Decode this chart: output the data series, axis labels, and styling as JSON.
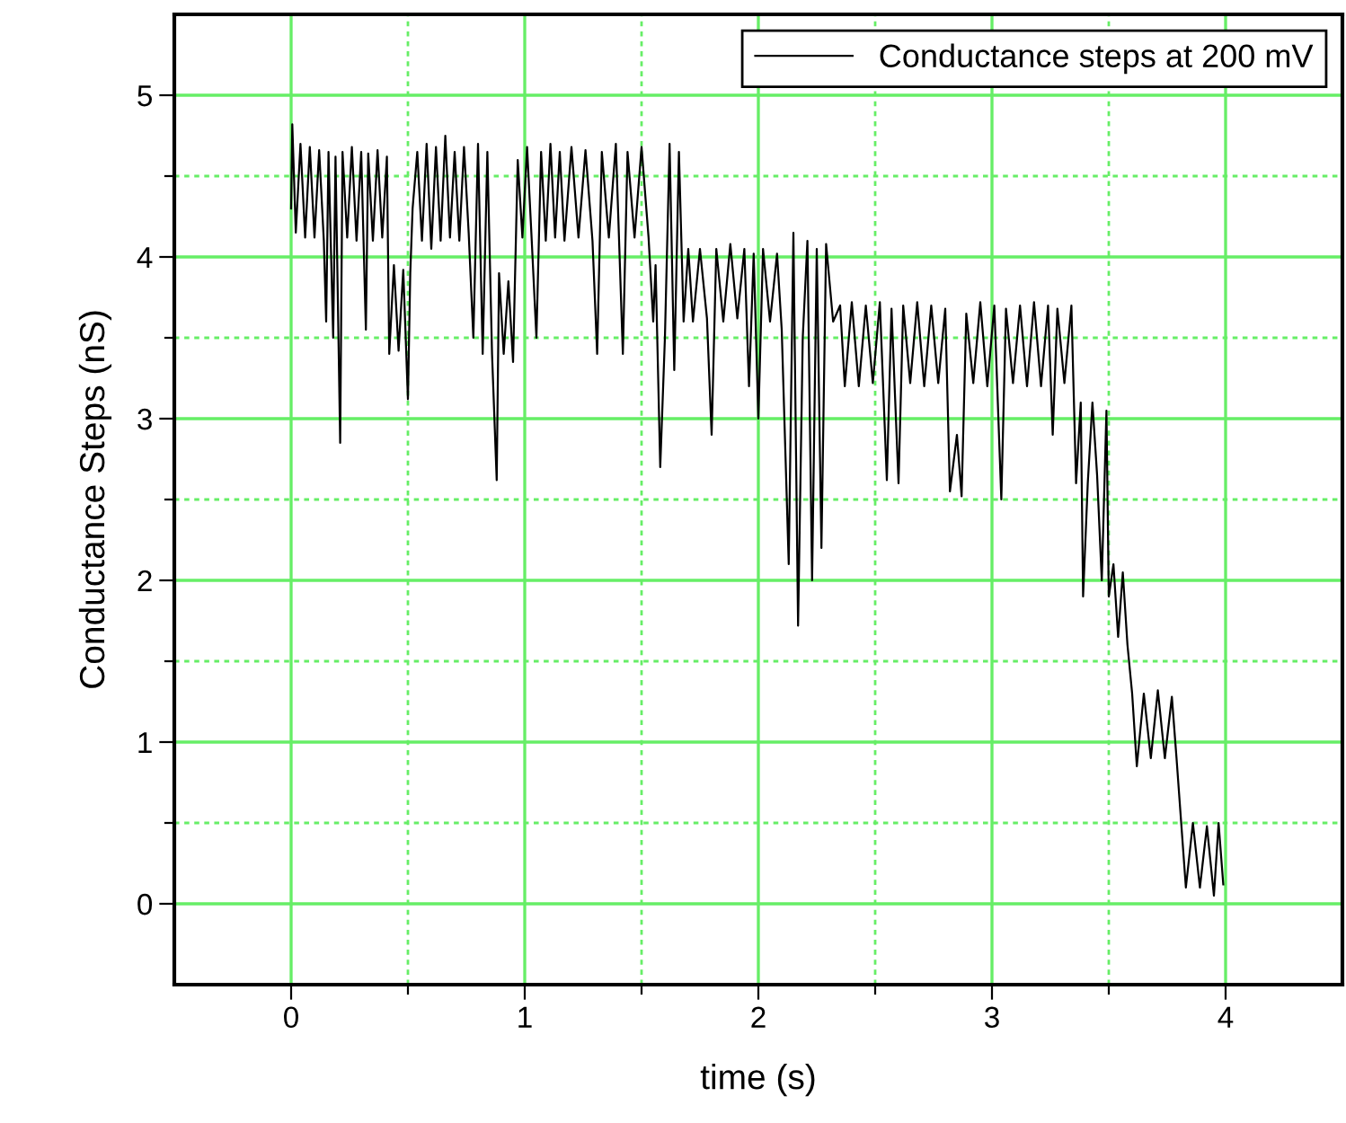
{
  "chart_data": {
    "type": "line",
    "xlabel": "time (s)",
    "ylabel": "Conductance Steps (nS)",
    "xlim": [
      -0.5,
      4.5
    ],
    "ylim": [
      -0.5,
      5.5
    ],
    "xticks": [
      0,
      {
        "value": 0.5,
        "label": null
      },
      1,
      {
        "value": 1.5,
        "label": null
      },
      2,
      {
        "value": 2.5,
        "label": null
      },
      3,
      {
        "value": 3.5,
        "label": null
      },
      4
    ],
    "yticks": [
      0,
      {
        "value": 0.5,
        "label": null
      },
      1,
      {
        "value": 1.5,
        "label": null
      },
      2,
      {
        "value": 2.5,
        "label": null
      },
      3,
      {
        "value": 3.5,
        "label": null
      },
      4,
      {
        "value": 4.5,
        "label": null
      },
      5
    ],
    "grid": true,
    "legend": "top right",
    "marker": "none",
    "line_style": "solid",
    "series": [
      {
        "name": "Conductance steps at 200 mV",
        "color": "#000000",
        "x": [
          0.0,
          0.005,
          0.02,
          0.04,
          0.06,
          0.08,
          0.1,
          0.12,
          0.14,
          0.15,
          0.16,
          0.18,
          0.19,
          0.21,
          0.22,
          0.24,
          0.26,
          0.28,
          0.3,
          0.32,
          0.33,
          0.35,
          0.37,
          0.39,
          0.41,
          0.42,
          0.44,
          0.46,
          0.48,
          0.5,
          0.51,
          0.52,
          0.54,
          0.56,
          0.58,
          0.6,
          0.62,
          0.64,
          0.66,
          0.68,
          0.7,
          0.72,
          0.74,
          0.76,
          0.78,
          0.8,
          0.82,
          0.84,
          0.86,
          0.88,
          0.89,
          0.91,
          0.93,
          0.95,
          0.97,
          0.99,
          1.01,
          1.03,
          1.05,
          1.07,
          1.09,
          1.11,
          1.13,
          1.15,
          1.17,
          1.2,
          1.23,
          1.26,
          1.29,
          1.31,
          1.33,
          1.36,
          1.39,
          1.42,
          1.44,
          1.47,
          1.5,
          1.53,
          1.55,
          1.56,
          1.58,
          1.6,
          1.62,
          1.64,
          1.66,
          1.68,
          1.7,
          1.72,
          1.75,
          1.78,
          1.8,
          1.82,
          1.85,
          1.88,
          1.91,
          1.94,
          1.96,
          1.98,
          2.0,
          2.02,
          2.05,
          2.08,
          2.1,
          2.13,
          2.15,
          2.17,
          2.19,
          2.21,
          2.23,
          2.25,
          2.27,
          2.29,
          2.32,
          2.35,
          2.37,
          2.4,
          2.43,
          2.46,
          2.49,
          2.52,
          2.55,
          2.57,
          2.6,
          2.62,
          2.65,
          2.68,
          2.71,
          2.74,
          2.77,
          2.8,
          2.82,
          2.85,
          2.87,
          2.89,
          2.92,
          2.95,
          2.98,
          3.01,
          3.04,
          3.06,
          3.09,
          3.12,
          3.15,
          3.18,
          3.21,
          3.24,
          3.26,
          3.28,
          3.31,
          3.34,
          3.36,
          3.38,
          3.39,
          3.41,
          3.43,
          3.45,
          3.47,
          3.49,
          3.5,
          3.52,
          3.54,
          3.56,
          3.58,
          3.6,
          3.62,
          3.65,
          3.68,
          3.71,
          3.74,
          3.77,
          3.79,
          3.81,
          3.83,
          3.86,
          3.89,
          3.92,
          3.95,
          3.97,
          3.99
        ],
        "values": [
          4.3,
          4.82,
          4.15,
          4.7,
          4.12,
          4.68,
          4.12,
          4.66,
          4.1,
          3.6,
          4.65,
          3.5,
          4.62,
          2.85,
          4.65,
          4.12,
          4.68,
          4.1,
          4.65,
          3.55,
          4.64,
          4.1,
          4.66,
          4.12,
          4.62,
          3.4,
          3.95,
          3.42,
          3.92,
          3.12,
          3.9,
          4.3,
          4.65,
          4.1,
          4.7,
          4.05,
          4.68,
          4.1,
          4.75,
          4.12,
          4.65,
          4.1,
          4.68,
          4.15,
          3.5,
          4.7,
          3.4,
          4.65,
          3.4,
          2.62,
          3.9,
          3.4,
          3.85,
          3.35,
          4.6,
          4.12,
          4.68,
          4.1,
          3.5,
          4.65,
          4.1,
          4.7,
          4.12,
          4.65,
          4.1,
          4.68,
          4.12,
          4.66,
          4.1,
          3.4,
          4.65,
          4.12,
          4.7,
          3.4,
          4.65,
          4.12,
          4.68,
          4.12,
          3.6,
          3.95,
          2.7,
          3.5,
          4.7,
          3.3,
          4.65,
          3.6,
          4.05,
          3.6,
          4.05,
          3.62,
          2.9,
          4.05,
          3.6,
          4.08,
          3.62,
          4.05,
          3.2,
          4.02,
          3.0,
          4.05,
          3.6,
          4.02,
          3.55,
          2.1,
          4.15,
          1.72,
          3.5,
          4.1,
          2.0,
          4.05,
          2.2,
          4.08,
          3.6,
          3.7,
          3.2,
          3.72,
          3.2,
          3.7,
          3.22,
          3.72,
          2.62,
          3.68,
          2.6,
          3.7,
          3.22,
          3.72,
          3.2,
          3.7,
          3.22,
          3.68,
          2.55,
          2.9,
          2.52,
          3.65,
          3.22,
          3.72,
          3.2,
          3.7,
          2.5,
          3.68,
          3.22,
          3.7,
          3.2,
          3.72,
          3.2,
          3.7,
          2.9,
          3.68,
          3.22,
          3.7,
          2.6,
          3.1,
          1.9,
          2.6,
          3.1,
          2.65,
          2.0,
          3.05,
          1.9,
          2.1,
          1.65,
          2.05,
          1.6,
          1.3,
          0.85,
          1.3,
          0.9,
          1.32,
          0.9,
          1.28,
          0.9,
          0.5,
          0.1,
          0.5,
          0.1,
          0.48,
          0.05,
          0.5,
          0.12
        ]
      }
    ]
  }
}
